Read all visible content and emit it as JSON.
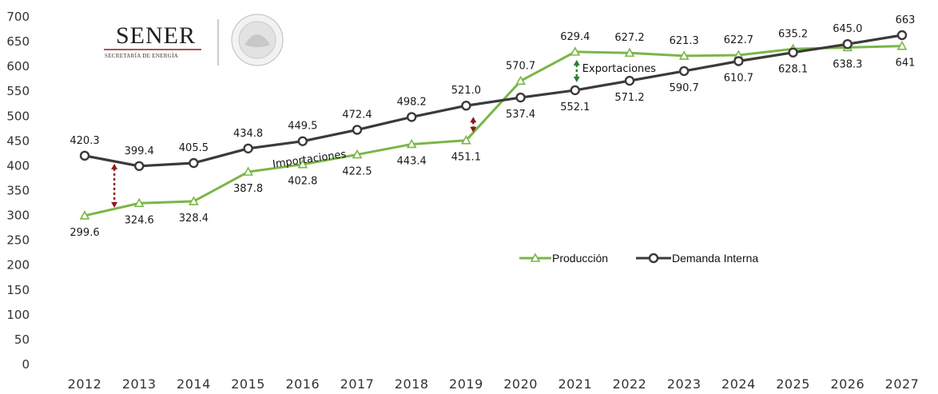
{
  "logo": {
    "name": "SENER",
    "subtitle": "SECRETARÍA DE ENERGÍA"
  },
  "chart_data": {
    "type": "line",
    "categories": [
      "2012",
      "2013",
      "2014",
      "2015",
      "2016",
      "2017",
      "2018",
      "2019",
      "2020",
      "2021",
      "2022",
      "2023",
      "2024",
      "2025",
      "2026",
      "2027"
    ],
    "ylim": [
      0,
      700
    ],
    "yticks": [
      "0",
      "50",
      "100",
      "150",
      "200",
      "250",
      "300",
      "350",
      "400",
      "450",
      "500",
      "550",
      "600",
      "650",
      "700"
    ],
    "grid": false,
    "legend_position": "center-right",
    "series": [
      {
        "name": "Producción",
        "color": "#7ab648",
        "marker": "triangle",
        "values": [
          299.6,
          324.6,
          328.4,
          387.8,
          402.8,
          422.5,
          443.4,
          451.1,
          570.7,
          629.4,
          627.2,
          621.3,
          622.7,
          635.2,
          638.3,
          641
        ],
        "labels": [
          "299.6",
          "324.6",
          "328.4",
          "387.8",
          "402.8",
          "422.5",
          "443.4",
          "451.1",
          "570.7",
          "629.4",
          "627.2",
          "621.3",
          "622.7",
          "635.2",
          "638.3",
          "641"
        ]
      },
      {
        "name": "Demanda Interna",
        "color": "#3a3a3a",
        "marker": "circle",
        "values": [
          420.3,
          399.4,
          405.5,
          434.8,
          449.5,
          472.4,
          498.2,
          521.0,
          537.4,
          552.1,
          571.2,
          590.7,
          610.7,
          628.1,
          645.0,
          663
        ],
        "labels": [
          "420.3",
          "399.4",
          "405.5",
          "434.8",
          "449.5",
          "472.4",
          "498.2",
          "521.0",
          "537.4",
          "552.1",
          "571.2",
          "590.7",
          "610.7",
          "628.1",
          "645.0",
          "663"
        ]
      }
    ],
    "annotations": [
      {
        "text": "Importaciones",
        "color": "#8b1a1a"
      },
      {
        "text": "Exportaciones",
        "color": "#2e7d32"
      }
    ]
  }
}
